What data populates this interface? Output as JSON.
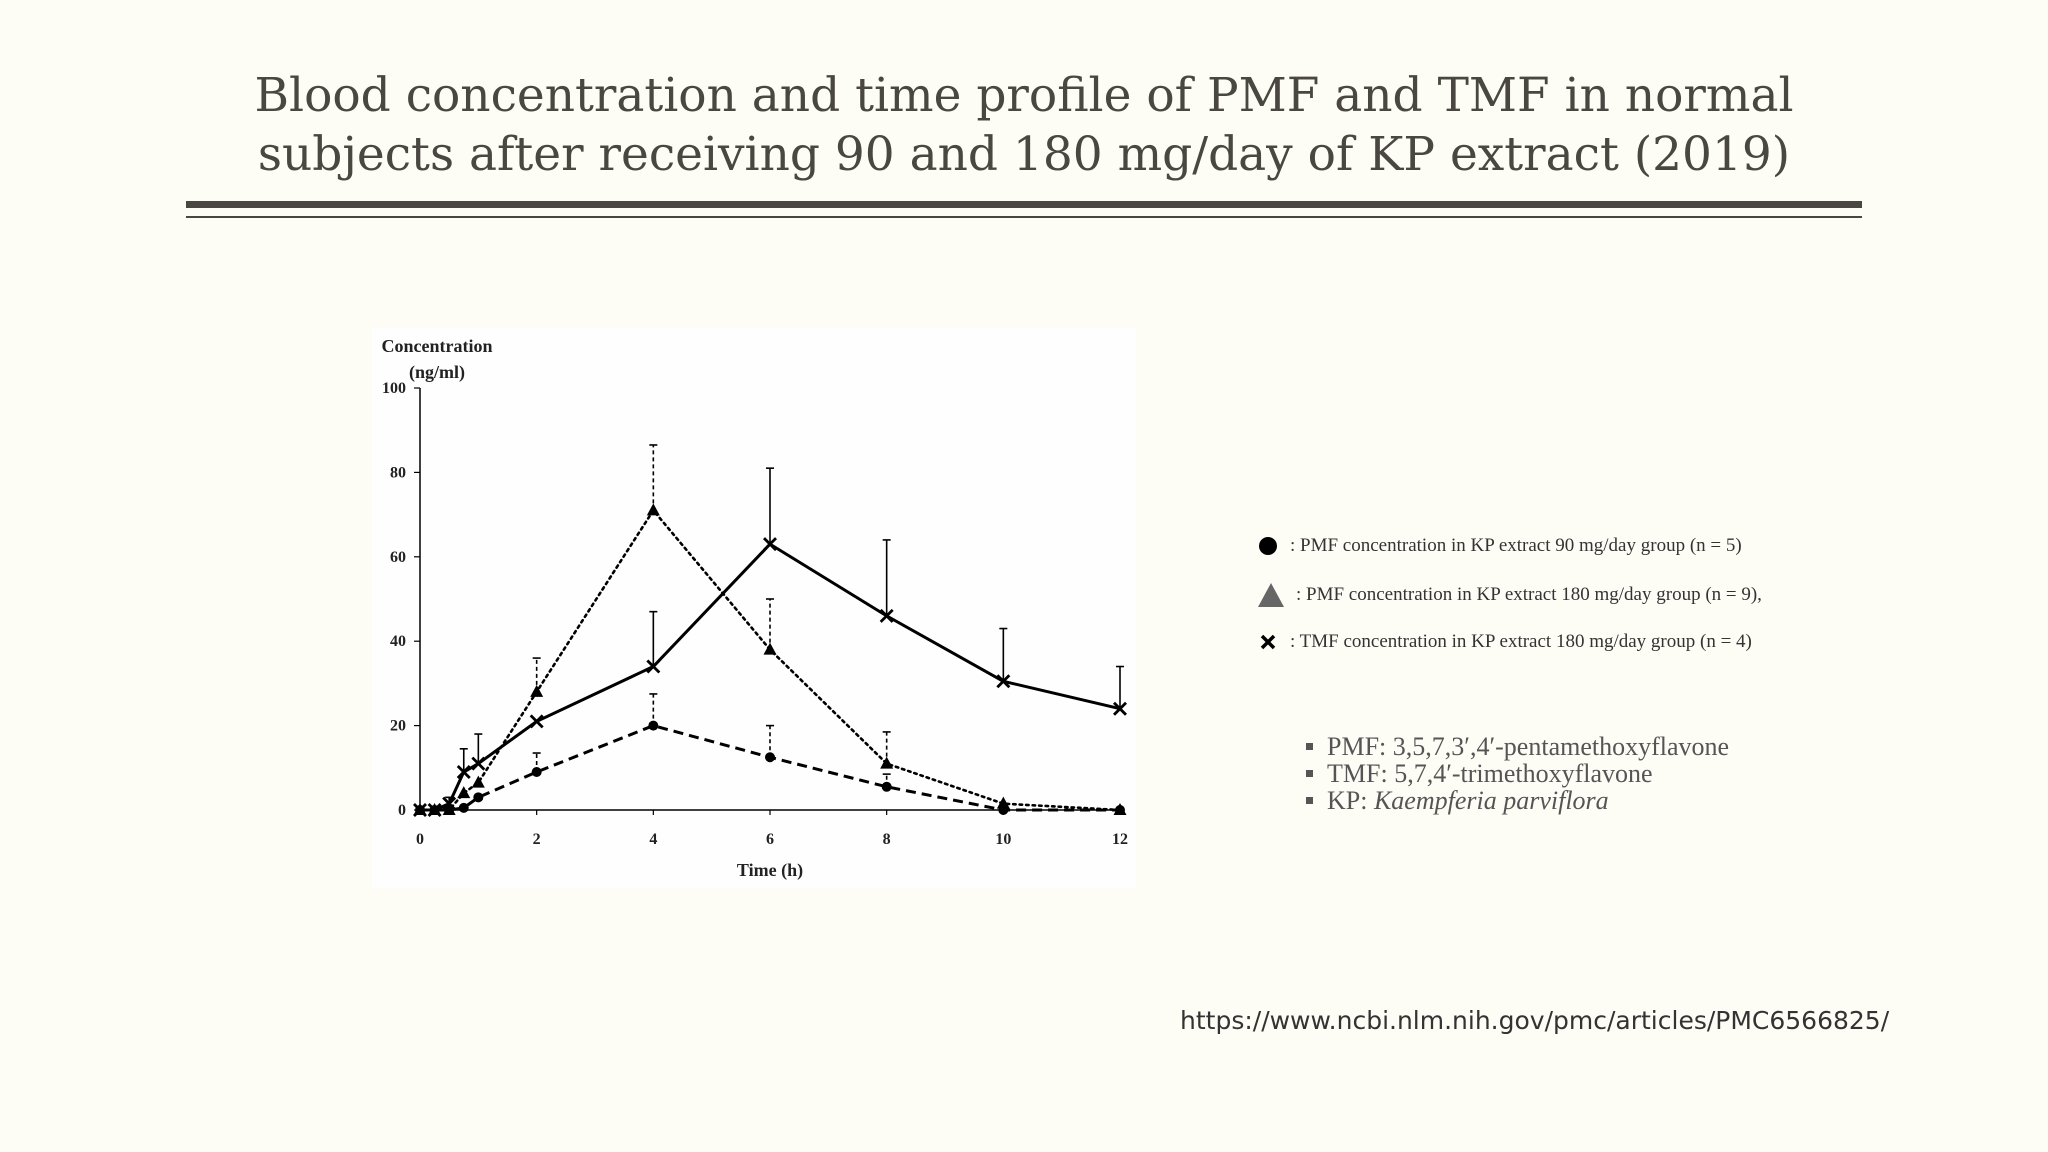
{
  "slide": {
    "title_line1": "Blood concentration and time profile of PMF and TMF in normal",
    "title_line2": "subjects after receiving 90 and 180 mg/day of KP extract (2019)",
    "source_url": "https://www.ncbi.nlm.nih.gov/pmc/articles/PMC6566825/"
  },
  "legend": [
    {
      "marker": "circle",
      "text": ": PMF concentration in KP extract 90 mg/day group (n = 5)"
    },
    {
      "marker": "triangle",
      "text": ": PMF concentration in KP extract 180 mg/day group (n = 9),"
    },
    {
      "marker": "cross",
      "text": ": TMF concentration in KP extract 180 mg/day group (n = 4)"
    }
  ],
  "notes": [
    {
      "label": "PMF:",
      "value": "3,5,7,3′,4′-pentamethoxyflavone"
    },
    {
      "label": "TMF:",
      "value": "5,7,4′-trimethoxyflavone"
    },
    {
      "label": "KP:",
      "value": "Kaempferia parviflora"
    }
  ],
  "colors": {
    "background": "#fdfcf5",
    "title": "#4a4641",
    "series": "#000000"
  },
  "chart_data": {
    "type": "line",
    "ylabel_line1": "Concentration",
    "ylabel_line2": "(ng/ml)",
    "xlabel": "Time (h)",
    "xlim": [
      0,
      12
    ],
    "ylim": [
      0,
      100
    ],
    "x_ticks": [
      0,
      2,
      4,
      6,
      8,
      10,
      12
    ],
    "y_ticks": [
      0,
      20,
      40,
      60,
      80,
      100
    ],
    "grid": false,
    "series": [
      {
        "name": "PMF 90 mg/day (n = 5)",
        "marker": "circle",
        "line": "dashed",
        "x": [
          0,
          0.25,
          0.5,
          0.75,
          1,
          2,
          4,
          6,
          8,
          10,
          12
        ],
        "y": [
          0,
          0,
          0,
          0.5,
          3,
          9,
          20,
          12.5,
          5.5,
          0,
          0
        ],
        "err": [
          0,
          0,
          0,
          0,
          0,
          4.5,
          7.5,
          7.5,
          3,
          0,
          0
        ]
      },
      {
        "name": "PMF 180 mg/day (n = 9)",
        "marker": "triangle",
        "line": "dotted",
        "x": [
          0,
          0.25,
          0.5,
          0.75,
          1,
          2,
          4,
          6,
          8,
          10,
          12
        ],
        "y": [
          0,
          0,
          0,
          4,
          6.5,
          28,
          71,
          38,
          11,
          1.5,
          0
        ],
        "err": [
          0,
          0,
          0,
          0,
          0,
          8,
          15.5,
          12,
          7.5,
          0,
          0
        ]
      },
      {
        "name": "TMF 180 mg/day (n = 4)",
        "marker": "cross",
        "line": "solid",
        "x": [
          0,
          0.25,
          0.5,
          0.75,
          1,
          2,
          4,
          6,
          8,
          10,
          12
        ],
        "y": [
          0,
          0,
          1.5,
          9,
          11,
          21,
          34,
          63,
          46,
          30.5,
          24
        ],
        "err": [
          0,
          0,
          1.5,
          5.5,
          7,
          0,
          13,
          18,
          18,
          12.5,
          10
        ]
      }
    ]
  }
}
